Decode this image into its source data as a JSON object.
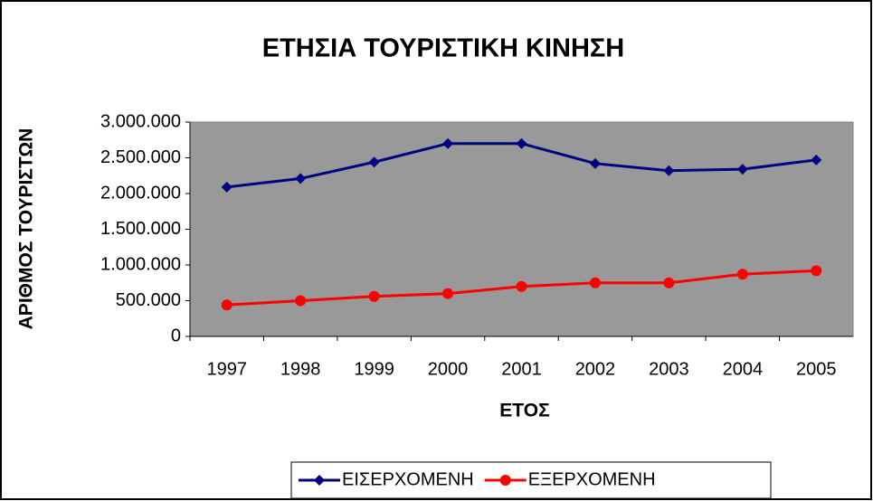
{
  "chart_data": {
    "type": "line",
    "title": "ΕΤΗΣΙΑ ΤΟΥΡΙΣΤΙΚΗ ΚΙΝΗΣΗ",
    "x_label": "ΕΤΟΣ",
    "y_label": "ΑΡΙΘΜΟΣ ΤΟΥΡΙΣΤΩΝ",
    "categories": [
      "1997",
      "1998",
      "1999",
      "2000",
      "2001",
      "2002",
      "2003",
      "2004",
      "2005"
    ],
    "series": [
      {
        "name": "ΕΙΣΕΡΧΟΜΕΝΗ",
        "color": "#000080",
        "marker": "diamond",
        "values": [
          2090000,
          2210000,
          2440000,
          2700000,
          2700000,
          2420000,
          2320000,
          2340000,
          2470000
        ]
      },
      {
        "name": "ΕΞΕΡΧΟΜΕΝΗ",
        "color": "#ff0000",
        "marker": "circle",
        "values": [
          440000,
          500000,
          560000,
          600000,
          700000,
          750000,
          750000,
          870000,
          920000
        ]
      }
    ],
    "ylim": [
      0,
      3000000
    ],
    "yticks": [
      0,
      {
        "value": 500000,
        "label": "500.000"
      },
      {
        "value": 1000000,
        "label": "1.000.000"
      },
      {
        "value": 1500000,
        "label": "1.500.000"
      },
      {
        "value": 2000000,
        "label": "2.000.000"
      },
      {
        "value": 2500000,
        "label": "2.500.000"
      },
      {
        "value": 3000000,
        "label": "3.000.000"
      }
    ],
    "plot_background": "#999999",
    "legend": "bottom"
  }
}
